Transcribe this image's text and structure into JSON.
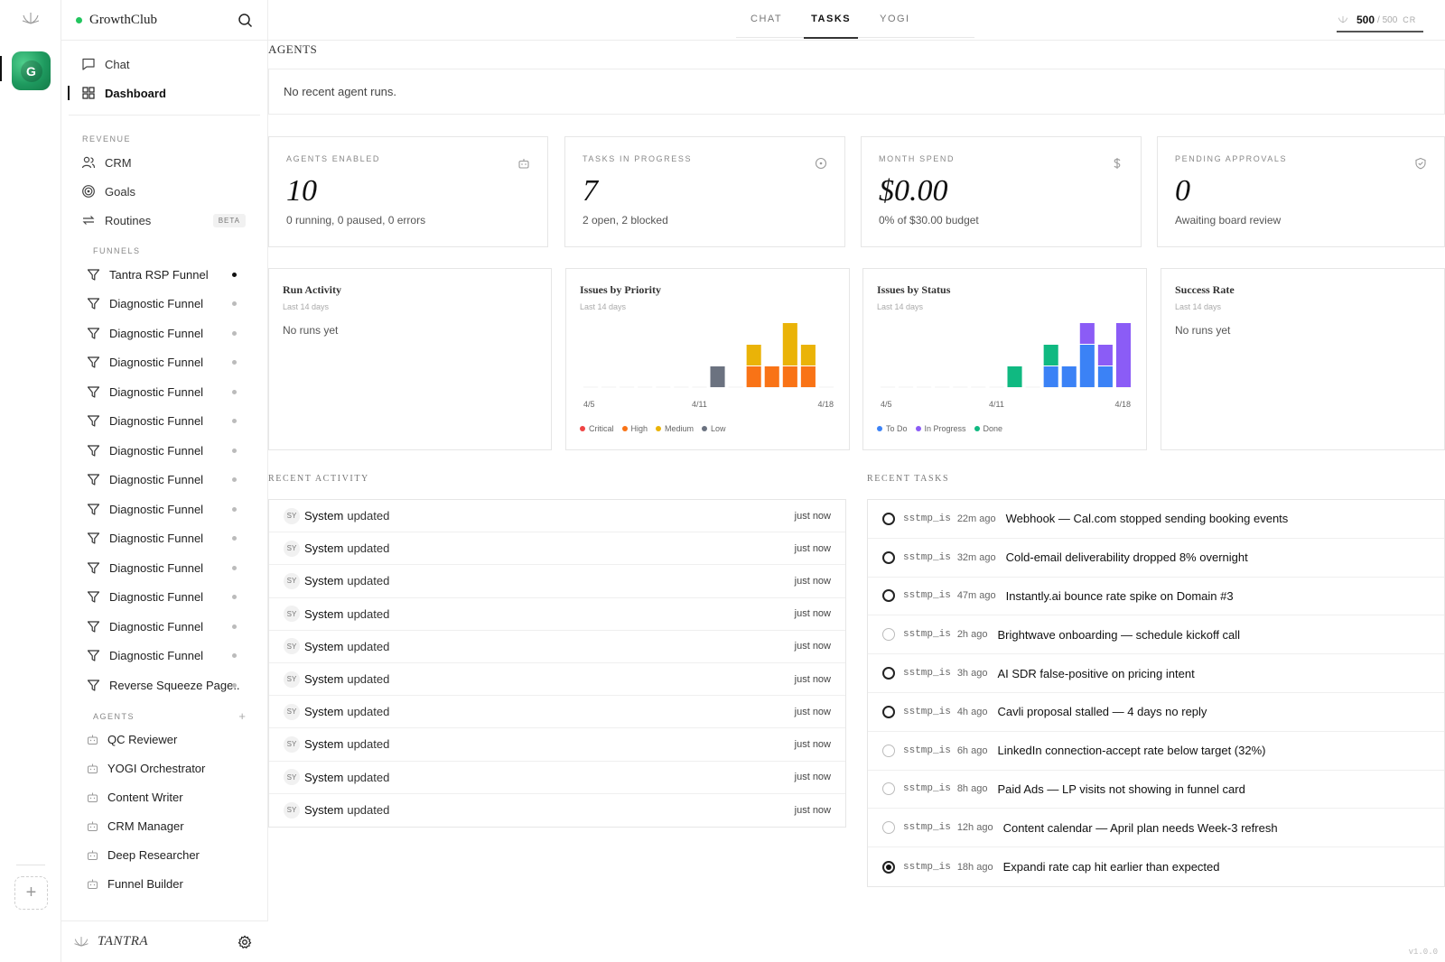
{
  "sidebar": {
    "org_name": "GrowthClub",
    "avatar_letter": "G",
    "nav": [
      {
        "label": "Chat",
        "icon": "chat-icon"
      },
      {
        "label": "Dashboard",
        "icon": "dashboard-icon",
        "active": true
      }
    ],
    "revenue_section": "REVENUE",
    "revenue_items": [
      {
        "label": "CRM",
        "icon": "users-icon"
      },
      {
        "label": "Goals",
        "icon": "target-icon"
      },
      {
        "label": "Routines",
        "icon": "repeat-icon",
        "badge": "BETA"
      }
    ],
    "funnels_section": "FUNNELS",
    "funnels": [
      {
        "label": "Tantra RSP Funnel",
        "active": true
      },
      {
        "label": "Diagnostic Funnel"
      },
      {
        "label": "Diagnostic Funnel"
      },
      {
        "label": "Diagnostic Funnel"
      },
      {
        "label": "Diagnostic Funnel"
      },
      {
        "label": "Diagnostic Funnel"
      },
      {
        "label": "Diagnostic Funnel"
      },
      {
        "label": "Diagnostic Funnel"
      },
      {
        "label": "Diagnostic Funnel"
      },
      {
        "label": "Diagnostic Funnel"
      },
      {
        "label": "Diagnostic Funnel"
      },
      {
        "label": "Diagnostic Funnel"
      },
      {
        "label": "Diagnostic Funnel"
      },
      {
        "label": "Diagnostic Funnel"
      },
      {
        "label": "Reverse Squeeze Page..."
      }
    ],
    "agents_section": "AGENTS",
    "agents_add": "+",
    "agents": [
      {
        "label": "QC Reviewer"
      },
      {
        "label": "YOGI Orchestrator"
      },
      {
        "label": "Content Writer"
      },
      {
        "label": "CRM Manager"
      },
      {
        "label": "Deep Researcher"
      },
      {
        "label": "Funnel Builder"
      }
    ],
    "footer_brand": "TANTRA"
  },
  "tabs": [
    {
      "label": "CHAT"
    },
    {
      "label": "TASKS",
      "active": true
    },
    {
      "label": "YOGI"
    }
  ],
  "credits": {
    "value": "500",
    "max": "/ 500",
    "unit": "CR"
  },
  "agents_panel": {
    "title": "AGENTS",
    "empty": "No recent agent runs."
  },
  "stats": [
    {
      "label": "AGENTS ENABLED",
      "value": "10",
      "sub": "0 running, 0 paused, 0 errors",
      "icon": "bot-icon"
    },
    {
      "label": "TASKS IN PROGRESS",
      "value": "7",
      "sub": "2 open, 2 blocked",
      "icon": "circle-dot-icon"
    },
    {
      "label": "MONTH SPEND",
      "value": "$0.00",
      "sub": "0% of $30.00 budget",
      "icon": "dollar-icon"
    },
    {
      "label": "PENDING APPROVALS",
      "value": "0",
      "sub": "Awaiting board review",
      "icon": "shield-check-icon"
    }
  ],
  "panels": {
    "run_activity": {
      "title": "Run Activity",
      "sub": "Last 14 days",
      "empty": "No runs yet"
    },
    "issues_priority": {
      "title": "Issues by Priority",
      "sub": "Last 14 days"
    },
    "issues_status": {
      "title": "Issues by Status",
      "sub": "Last 14 days"
    },
    "success_rate": {
      "title": "Success Rate",
      "sub": "Last 14 days",
      "empty": "No runs yet"
    }
  },
  "chart_data": [
    {
      "type": "bar",
      "title": "Issues by Priority",
      "subtitle": "Last 14 days",
      "x_ticks": [
        "4/5",
        "4/11",
        "4/18"
      ],
      "stacked": true,
      "days": 14,
      "series": [
        {
          "name": "Critical",
          "color": "#ef4444",
          "values": [
            0,
            0,
            0,
            0,
            0,
            0,
            0,
            0,
            0,
            0,
            0,
            0,
            0,
            0
          ]
        },
        {
          "name": "High",
          "color": "#f97316",
          "values": [
            0,
            0,
            0,
            0,
            0,
            0,
            0,
            0,
            0,
            1,
            1,
            1,
            1,
            0
          ]
        },
        {
          "name": "Medium",
          "color": "#eab308",
          "values": [
            0,
            0,
            0,
            0,
            0,
            0,
            0,
            0,
            0,
            1,
            0,
            2,
            1,
            0
          ]
        },
        {
          "name": "Low",
          "color": "#6b7280",
          "values": [
            0,
            0,
            0,
            0,
            0,
            0,
            0,
            1,
            0,
            0,
            0,
            0,
            0,
            0
          ]
        }
      ]
    },
    {
      "type": "bar",
      "title": "Issues by Status",
      "subtitle": "Last 14 days",
      "x_ticks": [
        "4/5",
        "4/11",
        "4/18"
      ],
      "stacked": true,
      "days": 14,
      "series": [
        {
          "name": "To Do",
          "color": "#3b82f6",
          "values": [
            0,
            0,
            0,
            0,
            0,
            0,
            0,
            0,
            0,
            1,
            1,
            2,
            1,
            0
          ]
        },
        {
          "name": "In Progress",
          "color": "#8b5cf6",
          "values": [
            0,
            0,
            0,
            0,
            0,
            0,
            0,
            0,
            0,
            0,
            0,
            1,
            1,
            3
          ]
        },
        {
          "name": "Done",
          "color": "#10b981",
          "values": [
            0,
            0,
            0,
            0,
            0,
            0,
            0,
            1,
            0,
            1,
            0,
            0,
            0,
            0
          ]
        }
      ]
    }
  ],
  "recent_activity": {
    "title": "RECENT ACTIVITY",
    "rows": [
      {
        "avatar": "SY",
        "actor": "System",
        "action": "updated",
        "time": "just now"
      },
      {
        "avatar": "SY",
        "actor": "System",
        "action": "updated",
        "time": "just now"
      },
      {
        "avatar": "SY",
        "actor": "System",
        "action": "updated",
        "time": "just now"
      },
      {
        "avatar": "SY",
        "actor": "System",
        "action": "updated",
        "time": "just now"
      },
      {
        "avatar": "SY",
        "actor": "System",
        "action": "updated",
        "time": "just now"
      },
      {
        "avatar": "SY",
        "actor": "System",
        "action": "updated",
        "time": "just now"
      },
      {
        "avatar": "SY",
        "actor": "System",
        "action": "updated",
        "time": "just now"
      },
      {
        "avatar": "SY",
        "actor": "System",
        "action": "updated",
        "time": "just now"
      },
      {
        "avatar": "SY",
        "actor": "System",
        "action": "updated",
        "time": "just now"
      },
      {
        "avatar": "SY",
        "actor": "System",
        "action": "updated",
        "time": "just now"
      }
    ]
  },
  "recent_tasks": {
    "title": "RECENT TASKS",
    "rows": [
      {
        "id": "sstmp_is",
        "age": "22m ago",
        "title": "Webhook — Cal.com stopped sending booking events",
        "status": "open"
      },
      {
        "id": "sstmp_is",
        "age": "32m ago",
        "title": "Cold-email deliverability dropped 8% overnight",
        "status": "open"
      },
      {
        "id": "sstmp_is",
        "age": "47m ago",
        "title": "Instantly.ai bounce rate spike on Domain #3",
        "status": "open"
      },
      {
        "id": "sstmp_is",
        "age": "2h ago",
        "title": "Brightwave onboarding — schedule kickoff call",
        "status": "todo"
      },
      {
        "id": "sstmp_is",
        "age": "3h ago",
        "title": "AI SDR false-positive on pricing intent",
        "status": "open"
      },
      {
        "id": "sstmp_is",
        "age": "4h ago",
        "title": "Cavli proposal stalled — 4 days no reply",
        "status": "open"
      },
      {
        "id": "sstmp_is",
        "age": "6h ago",
        "title": "LinkedIn connection-accept rate below target (32%)",
        "status": "todo"
      },
      {
        "id": "sstmp_is",
        "age": "8h ago",
        "title": "Paid Ads — LP visits not showing in funnel card",
        "status": "todo"
      },
      {
        "id": "sstmp_is",
        "age": "12h ago",
        "title": "Content calendar — April plan needs Week-3 refresh",
        "status": "todo"
      },
      {
        "id": "sstmp_is",
        "age": "18h ago",
        "title": "Expandi rate cap hit earlier than expected",
        "status": "done"
      }
    ]
  },
  "version": "v1.0.0"
}
